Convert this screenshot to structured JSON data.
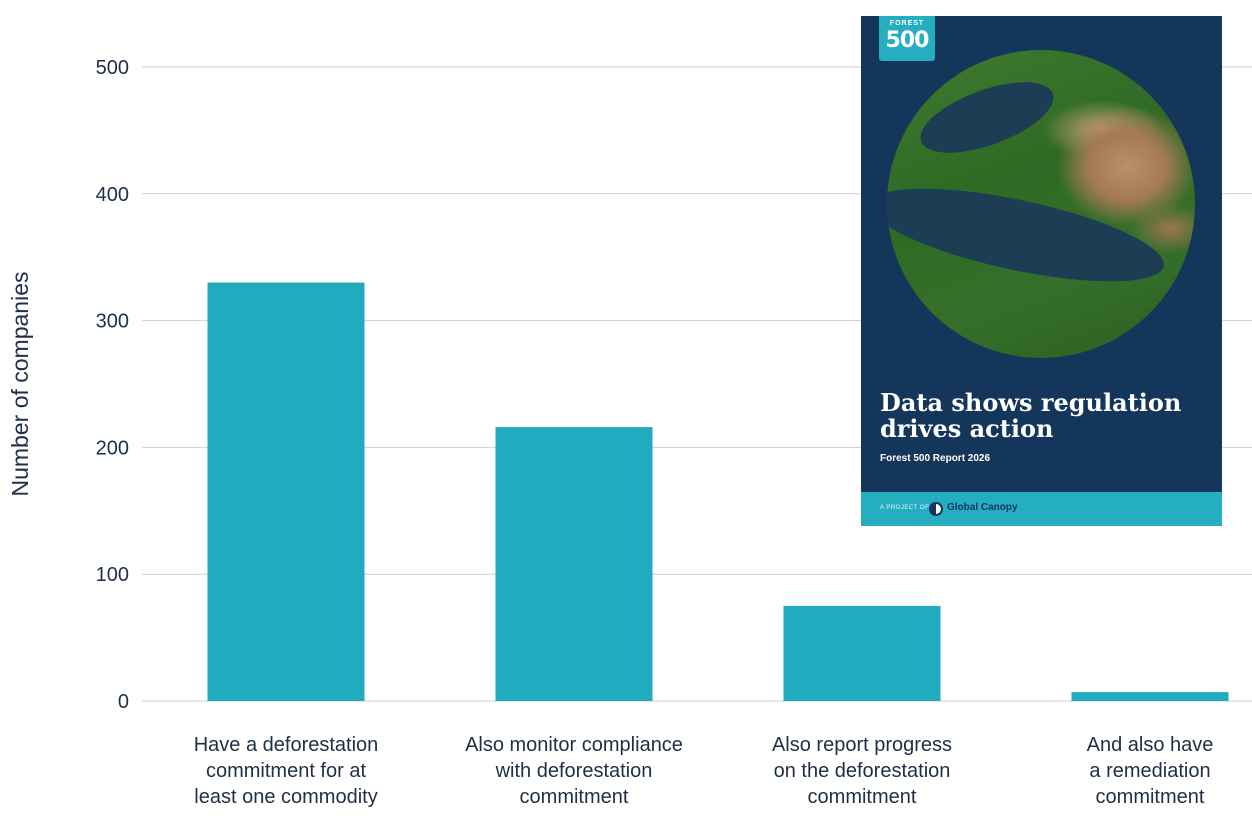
{
  "chart_data": {
    "type": "bar",
    "categories": [
      [
        "Have a deforestation",
        "commitment for at",
        "least one commodity"
      ],
      [
        "Also monitor compliance",
        "with deforestation",
        "commitment"
      ],
      [
        "Also report progress",
        "on the deforestation",
        "commitment"
      ],
      [
        "And also have",
        "a remediation",
        "commitment"
      ]
    ],
    "values": [
      330,
      216,
      75,
      7
    ],
    "ylabel": "Number of companies",
    "ylim": [
      0,
      500
    ],
    "yticks": [
      0,
      100,
      200,
      300,
      400,
      500
    ],
    "grid": true,
    "bar_color": "#22abbe",
    "grid_color": "#cfcfcf"
  },
  "cover": {
    "logo_small": "FOREST",
    "logo_big": "500",
    "title_line1": "Data shows regulation",
    "title_line2": "drives action",
    "subtitle": "Forest 500 Report 2026",
    "band_prefix": "A PROJECT OF",
    "band_brand": "Global Canopy",
    "background_color": "#14365a",
    "band_color": "#25aec0"
  }
}
